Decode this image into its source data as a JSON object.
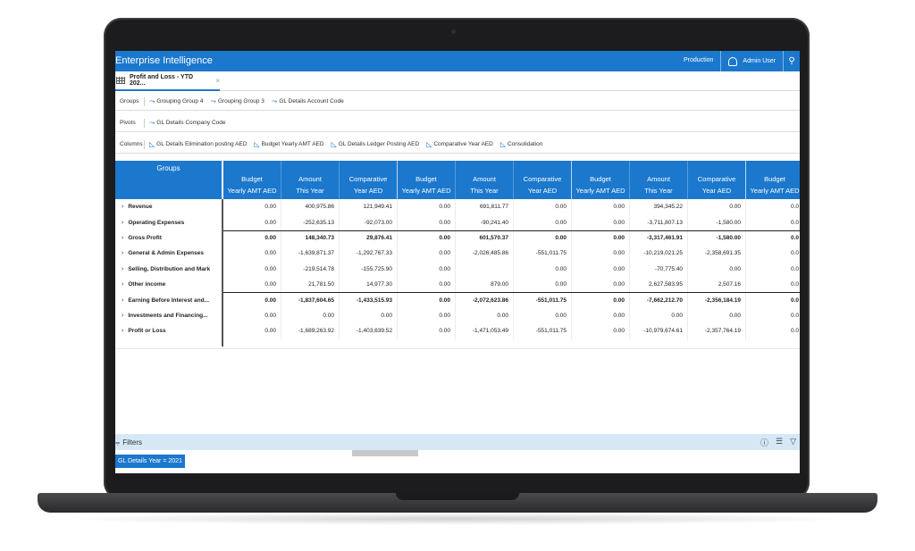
{
  "app": {
    "title": "Enterprise Intelligence",
    "environment": "Production",
    "user": "Admin User"
  },
  "tab": {
    "label": "Profit and Loss - YTD 202...",
    "close": "×"
  },
  "groups_bar": {
    "label": "Groups",
    "items": [
      "Grouping Group 4",
      "Grouping Group 3",
      "GL Details Account Code"
    ]
  },
  "pivots_bar": {
    "label": "Pivots",
    "items": [
      "GL Details Company Code"
    ]
  },
  "columns_bar": {
    "label": "Columns",
    "items": [
      "GL Details Elimination posting AED",
      "Budget Yearly AMT AED",
      "GL Details Ledger Posting AED",
      "Comparative Year AED",
      "Consolidation"
    ]
  },
  "grid": {
    "groups_header": "Groups",
    "headers": [
      [
        "Budget",
        "Yearly AMT AED"
      ],
      [
        "Amount",
        "This Year"
      ],
      [
        "Comparative",
        "Year AED"
      ],
      [
        "Budget",
        "Yearly AMT AED"
      ],
      [
        "Amount",
        "This Year"
      ],
      [
        "Comparative",
        "Year AED"
      ],
      [
        "Budget",
        "Yearly AMT AED"
      ],
      [
        "Amount",
        "This Year"
      ],
      [
        "Comparative",
        "Year AED"
      ],
      [
        "Budget",
        "Yearly AMT AED"
      ]
    ],
    "rows": [
      {
        "label": "Revenue",
        "values": [
          "0.00",
          "400,975.86",
          "121,949.41",
          "0.00",
          "691,811.77",
          "0.00",
          "0.00",
          "394,345.22",
          "0.00",
          "0.0"
        ]
      },
      {
        "label": "Operating Expenses",
        "values": [
          "0.00",
          "-252,635.13",
          "-92,073.00",
          "0.00",
          "-90,241.40",
          "0.00",
          "0.00",
          "-3,711,807.13",
          "-1,580.00",
          "0.0"
        ]
      },
      {
        "label": "Gross Profit",
        "values": [
          "0.00",
          "148,340.73",
          "29,876.41",
          "0.00",
          "601,570.37",
          "0.00",
          "0.00",
          "-3,317,461.91",
          "-1,580.00",
          "0.0"
        ]
      },
      {
        "label": "General & Admin Expenses",
        "values": [
          "0.00",
          "-1,639,871.37",
          "-1,292,767.33",
          "0.00",
          "-2,026,485.86",
          "-551,011.75",
          "0.00",
          "-10,219,021.25",
          "-2,358,691.35",
          "0.0"
        ]
      },
      {
        "label": "Selling, Distribution and Mark",
        "values": [
          "0.00",
          "-219,514.78",
          "-155,725.90",
          "0.00",
          "",
          "0.00",
          "0.00",
          "-70,775.40",
          "0.00",
          "0.0"
        ]
      },
      {
        "label": "Other income",
        "values": [
          "0.00",
          "21,781.50",
          "14,977.30",
          "0.00",
          "879.00",
          "0.00",
          "0.00",
          "2,627,583.95",
          "2,507.16",
          "0.0"
        ]
      },
      {
        "label": "Earning Before Interest and...",
        "values": [
          "0.00",
          "-1,837,604.65",
          "-1,433,515.93",
          "0.00",
          "-2,072,623.86",
          "-551,011.75",
          "0.00",
          "-7,662,212.70",
          "-2,356,184.19",
          "0.0"
        ]
      },
      {
        "label": "Investments and Financing...",
        "values": [
          "0.00",
          "0.00",
          "0.00",
          "0.00",
          "0.00",
          "0.00",
          "0.00",
          "0.00",
          "0.00",
          "0.0"
        ]
      },
      {
        "label": "Profit or Loss",
        "values": [
          "0.00",
          "-1,689,263.92",
          "-1,403,639.52",
          "0.00",
          "-1,471,053.49",
          "-551,011.75",
          "0.00",
          "-10,979,674.61",
          "-2,357,764.19",
          "0.0"
        ]
      }
    ]
  },
  "filters": {
    "label": "Filters",
    "chip": "GL Details Year = 2021"
  },
  "colors": {
    "accent": "#1b78cd",
    "filter_bar": "#d6e8f6"
  }
}
